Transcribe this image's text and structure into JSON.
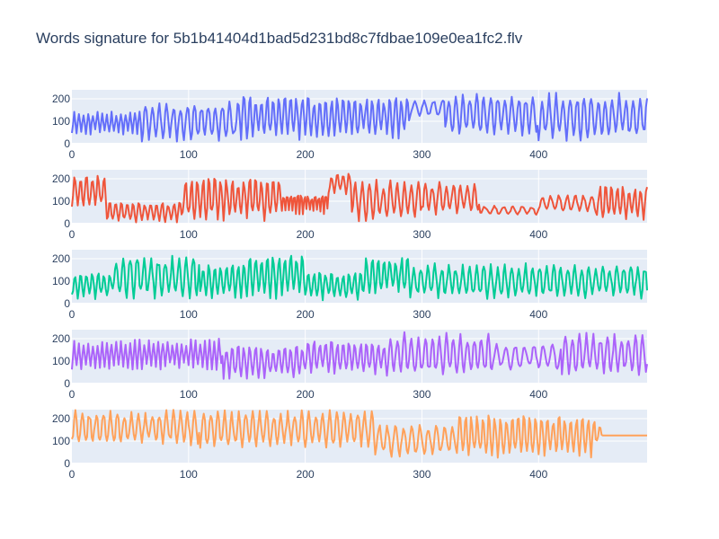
{
  "title": "Words signature for 5b1b41404d1bad5d231bd8c7fdbae109e0ea1fc2.flv",
  "chart_data": [
    {
      "type": "line",
      "series": [
        {
          "color": "#636efa",
          "seed": 11,
          "values": []
        }
      ],
      "xlim": [
        0,
        493
      ],
      "ylim": [
        0,
        240
      ],
      "x_ticks": [
        0,
        100,
        200,
        300,
        400
      ],
      "y_ticks": [
        0,
        100,
        200
      ],
      "grid": true,
      "plot_bgcolor": "#e5ecf6",
      "segments": [
        {
          "from": 0,
          "to": 60,
          "period": 4,
          "low": 40,
          "high": 150
        },
        {
          "from": 60,
          "to": 140,
          "period": 6,
          "low": 10,
          "high": 190
        },
        {
          "from": 140,
          "to": 200,
          "period": 5,
          "low": 15,
          "high": 230
        },
        {
          "from": 200,
          "to": 290,
          "period": 5,
          "low": 20,
          "high": 220
        },
        {
          "from": 290,
          "to": 320,
          "period": 8,
          "low": 120,
          "high": 200
        },
        {
          "from": 320,
          "to": 400,
          "period": 6,
          "low": 30,
          "high": 230
        },
        {
          "from": 400,
          "to": 493,
          "period": 6,
          "low": 10,
          "high": 230
        }
      ]
    },
    {
      "type": "line",
      "series": [
        {
          "color": "#ef553b",
          "seed": 23,
          "values": []
        }
      ],
      "xlim": [
        0,
        493
      ],
      "ylim": [
        0,
        240
      ],
      "x_ticks": [
        0,
        100,
        200,
        300,
        400
      ],
      "y_ticks": [
        0,
        100,
        200
      ],
      "grid": true,
      "plot_bgcolor": "#e5ecf6",
      "segments": [
        {
          "from": 0,
          "to": 30,
          "period": 5,
          "low": 60,
          "high": 230
        },
        {
          "from": 30,
          "to": 95,
          "period": 5,
          "low": 5,
          "high": 100
        },
        {
          "from": 95,
          "to": 180,
          "period": 5,
          "low": 10,
          "high": 220
        },
        {
          "from": 180,
          "to": 220,
          "period": 3,
          "low": 40,
          "high": 150
        },
        {
          "from": 220,
          "to": 240,
          "period": 5,
          "low": 130,
          "high": 230
        },
        {
          "from": 240,
          "to": 300,
          "period": 6,
          "low": 10,
          "high": 200
        },
        {
          "from": 300,
          "to": 350,
          "period": 6,
          "low": 40,
          "high": 190
        },
        {
          "from": 350,
          "to": 400,
          "period": 8,
          "low": 40,
          "high": 80
        },
        {
          "from": 400,
          "to": 450,
          "period": 7,
          "low": 50,
          "high": 130
        },
        {
          "from": 450,
          "to": 493,
          "period": 5,
          "low": 10,
          "high": 180
        }
      ]
    },
    {
      "type": "line",
      "series": [
        {
          "color": "#00cc96",
          "seed": 37,
          "values": []
        }
      ],
      "xlim": [
        0,
        493
      ],
      "ylim": [
        0,
        240
      ],
      "x_ticks": [
        0,
        100,
        200,
        300,
        400
      ],
      "y_ticks": [
        0,
        100,
        200
      ],
      "grid": true,
      "plot_bgcolor": "#e5ecf6",
      "segments": [
        {
          "from": 0,
          "to": 35,
          "period": 5,
          "low": 20,
          "high": 150
        },
        {
          "from": 35,
          "to": 110,
          "period": 6,
          "low": 20,
          "high": 220
        },
        {
          "from": 110,
          "to": 150,
          "period": 5,
          "low": 20,
          "high": 190
        },
        {
          "from": 150,
          "to": 200,
          "period": 5,
          "low": 20,
          "high": 230
        },
        {
          "from": 200,
          "to": 250,
          "period": 5,
          "low": 15,
          "high": 150
        },
        {
          "from": 250,
          "to": 290,
          "period": 5,
          "low": 40,
          "high": 220
        },
        {
          "from": 290,
          "to": 493,
          "period": 6,
          "low": 20,
          "high": 180
        }
      ]
    },
    {
      "type": "line",
      "series": [
        {
          "color": "#ab63fa",
          "seed": 53,
          "values": []
        }
      ],
      "xlim": [
        0,
        493
      ],
      "ylim": [
        0,
        240
      ],
      "x_ticks": [
        0,
        100,
        200,
        300,
        400
      ],
      "y_ticks": [
        0,
        100,
        200
      ],
      "grid": true,
      "plot_bgcolor": "#e5ecf6",
      "segments": [
        {
          "from": 0,
          "to": 130,
          "period": 4,
          "low": 60,
          "high": 200
        },
        {
          "from": 130,
          "to": 200,
          "period": 5,
          "low": 20,
          "high": 180
        },
        {
          "from": 200,
          "to": 270,
          "period": 5,
          "low": 40,
          "high": 200
        },
        {
          "from": 270,
          "to": 360,
          "period": 6,
          "low": 30,
          "high": 230
        },
        {
          "from": 360,
          "to": 420,
          "period": 8,
          "low": 60,
          "high": 180
        },
        {
          "from": 420,
          "to": 493,
          "period": 6,
          "low": 30,
          "high": 230
        }
      ]
    },
    {
      "type": "line",
      "series": [
        {
          "color": "#ffa15a",
          "seed": 71,
          "values": []
        }
      ],
      "xlim": [
        0,
        493
      ],
      "ylim": [
        0,
        240
      ],
      "x_ticks": [
        0,
        100,
        200,
        300,
        400
      ],
      "y_ticks": [
        0,
        100,
        200
      ],
      "grid": true,
      "plot_bgcolor": "#e5ecf6",
      "segments": [
        {
          "from": 0,
          "to": 110,
          "period": 6,
          "low": 80,
          "high": 240
        },
        {
          "from": 110,
          "to": 260,
          "period": 6,
          "low": 70,
          "high": 240
        },
        {
          "from": 260,
          "to": 330,
          "period": 7,
          "low": 30,
          "high": 180
        },
        {
          "from": 330,
          "to": 450,
          "period": 5,
          "low": 20,
          "high": 230
        },
        {
          "from": 450,
          "to": 455,
          "period": 5,
          "low": 100,
          "high": 170
        },
        {
          "from": 455,
          "to": 493,
          "period": 0,
          "low": 125,
          "high": 125
        }
      ]
    }
  ]
}
